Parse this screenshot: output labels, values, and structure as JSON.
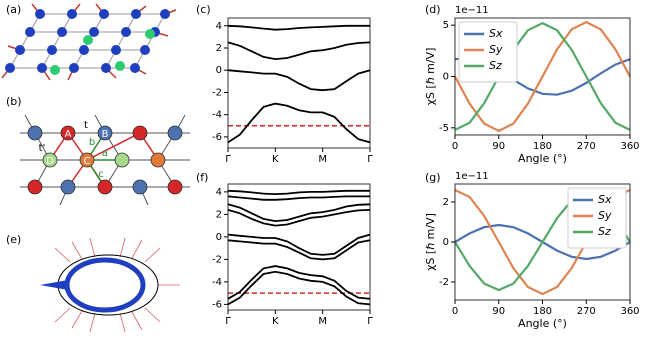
{
  "diagrams": [
    {
      "label": "(a)"
    },
    {
      "label": "(b)",
      "labels": [
        "A",
        "B",
        "C",
        "D",
        "t",
        "t'",
        "a",
        "b",
        "c"
      ]
    },
    {
      "label": "(e)"
    }
  ],
  "chart_data": [
    {
      "type": "line",
      "label": "(c)",
      "x": [
        0,
        0.25,
        0.5,
        0.75,
        1,
        1.25,
        1.5,
        1.75,
        2,
        2.25,
        2.5,
        2.75,
        3
      ],
      "xlim": [
        0,
        3
      ],
      "xticks": [
        {
          "value": 0,
          "label": "Γ"
        },
        {
          "value": 1,
          "label": "K"
        },
        {
          "value": 2,
          "label": "M"
        },
        {
          "value": 3,
          "label": "Γ"
        }
      ],
      "ylim": [
        -7,
        4.7
      ],
      "yticks": [
        -6,
        -4,
        -2,
        0,
        2,
        4
      ],
      "series": [
        {
          "color": "#000000",
          "values": [
            4.0,
            3.95,
            3.85,
            3.75,
            3.65,
            3.7,
            3.8,
            3.85,
            3.9,
            3.95,
            4.0,
            4.0,
            4.0
          ]
        },
        {
          "color": "#000000",
          "values": [
            2.5,
            2.2,
            1.7,
            1.2,
            1.0,
            1.1,
            1.4,
            1.7,
            1.8,
            2.0,
            2.3,
            2.45,
            2.5
          ]
        },
        {
          "color": "#000000",
          "values": [
            0,
            -0.1,
            -0.2,
            -0.3,
            -0.3,
            -0.6,
            -1.2,
            -1.7,
            -1.8,
            -1.7,
            -1.0,
            -0.3,
            0
          ]
        },
        {
          "color": "#000000",
          "values": [
            -6.5,
            -5.8,
            -4.5,
            -3.3,
            -3.0,
            -3.2,
            -3.6,
            -3.8,
            -3.8,
            -4.2,
            -5.3,
            -6.2,
            -6.5
          ]
        }
      ],
      "reference_line": {
        "value": -5,
        "color": "#d62728",
        "dashed": true
      }
    },
    {
      "type": "line",
      "label": "(f)",
      "x": [
        0,
        0.25,
        0.5,
        0.75,
        1,
        1.25,
        1.5,
        1.75,
        2,
        2.25,
        2.5,
        2.75,
        3
      ],
      "xlim": [
        0,
        3
      ],
      "xticks": [
        {
          "value": 0,
          "label": "Γ"
        },
        {
          "value": 1,
          "label": "K"
        },
        {
          "value": 2,
          "label": "M"
        },
        {
          "value": 3,
          "label": "Γ"
        }
      ],
      "ylim": [
        -6.5,
        4.7
      ],
      "yticks": [
        -6,
        -4,
        -2,
        0,
        2,
        4
      ],
      "series": [
        {
          "color": "#000000",
          "values": [
            4.1,
            4.05,
            3.95,
            3.85,
            3.8,
            3.85,
            3.95,
            4.0,
            4.0,
            4.05,
            4.1,
            4.1,
            4.1
          ]
        },
        {
          "color": "#000000",
          "values": [
            3.6,
            3.5,
            3.4,
            3.3,
            3.3,
            3.35,
            3.45,
            3.5,
            3.5,
            3.55,
            3.6,
            3.6,
            3.6
          ]
        },
        {
          "color": "#000000",
          "values": [
            2.9,
            2.6,
            2.1,
            1.6,
            1.4,
            1.5,
            1.8,
            2.1,
            2.2,
            2.4,
            2.7,
            2.85,
            2.9
          ]
        },
        {
          "color": "#000000",
          "values": [
            2.4,
            2.1,
            1.6,
            1.2,
            1.0,
            1.1,
            1.4,
            1.7,
            1.8,
            2.0,
            2.2,
            2.35,
            2.4
          ]
        },
        {
          "color": "#000000",
          "values": [
            0.2,
            0.1,
            0,
            -0.1,
            -0.1,
            -0.4,
            -1.0,
            -1.5,
            -1.6,
            -1.5,
            -0.8,
            -0.1,
            0.2
          ]
        },
        {
          "color": "#000000",
          "values": [
            -0.3,
            -0.4,
            -0.5,
            -0.6,
            -0.6,
            -0.9,
            -1.4,
            -1.9,
            -2.0,
            -1.9,
            -1.2,
            -0.5,
            -0.3
          ]
        },
        {
          "color": "#000000",
          "values": [
            -5.5,
            -4.9,
            -3.8,
            -2.8,
            -2.6,
            -2.8,
            -3.2,
            -3.4,
            -3.5,
            -3.9,
            -4.8,
            -5.4,
            -5.5
          ]
        },
        {
          "color": "#000000",
          "values": [
            -6.0,
            -5.4,
            -4.3,
            -3.3,
            -3.1,
            -3.3,
            -3.7,
            -3.9,
            -4.0,
            -4.4,
            -5.3,
            -5.9,
            -6.0
          ]
        }
      ],
      "reference_line": {
        "value": -5,
        "color": "#d62728",
        "dashed": true
      }
    },
    {
      "type": "line",
      "label": "(d)",
      "multiplier": "1e−11",
      "ylabel": "χS [ℏ m/V]",
      "xlabel": "Angle (°)",
      "x": [
        0,
        30,
        60,
        90,
        120,
        150,
        180,
        210,
        240,
        270,
        300,
        330,
        360
      ],
      "xlim": [
        0,
        360
      ],
      "xticks": [
        0,
        90,
        180,
        270,
        360
      ],
      "ylim": [
        -5.7,
        5.7
      ],
      "yticks": [
        -5,
        0,
        5
      ],
      "legend": "upper left",
      "series": [
        {
          "name": "Sx",
          "color": "#4c72b0",
          "values": [
            1.69,
            1.77,
            1.38,
            0.62,
            -0.31,
            -1.16,
            -1.69,
            -1.77,
            -1.38,
            -0.62,
            0.31,
            1.16,
            1.69
          ]
        },
        {
          "name": "Sy",
          "color": "#dd8452",
          "values": [
            0,
            -2.65,
            -4.59,
            -5.3,
            -4.59,
            -2.65,
            0,
            2.65,
            4.59,
            5.3,
            4.59,
            2.65,
            0
          ]
        },
        {
          "name": "Sz",
          "color": "#55a868",
          "values": [
            -5.2,
            -4.5,
            -2.6,
            0,
            2.6,
            4.5,
            5.2,
            4.5,
            2.6,
            0,
            -2.6,
            -4.5,
            -5.2
          ]
        }
      ]
    },
    {
      "type": "line",
      "label": "(g)",
      "multiplier": "1e−11",
      "ylabel": "χS [ℏ m/V]",
      "xlabel": "Angle (°)",
      "x": [
        0,
        30,
        60,
        90,
        120,
        150,
        180,
        210,
        240,
        270,
        300,
        330,
        360
      ],
      "xlim": [
        0,
        360
      ],
      "xticks": [
        0,
        90,
        180,
        270,
        360
      ],
      "ylim": [
        -2.9,
        2.9
      ],
      "yticks": [
        -2,
        0,
        2
      ],
      "legend": "upper right",
      "series": [
        {
          "name": "Sx",
          "color": "#4c72b0",
          "values": [
            0,
            0.43,
            0.74,
            0.85,
            0.74,
            0.43,
            0,
            -0.43,
            -0.74,
            -0.85,
            -0.74,
            -0.43,
            0
          ]
        },
        {
          "name": "Sy",
          "color": "#dd8452",
          "values": [
            2.6,
            2.25,
            1.3,
            0,
            -1.3,
            -2.25,
            -2.6,
            -2.25,
            -1.3,
            0,
            1.3,
            2.25,
            2.6
          ]
        },
        {
          "name": "Sz",
          "color": "#55a868",
          "values": [
            0,
            -1.2,
            -2.08,
            -2.4,
            -2.08,
            -1.2,
            0,
            1.2,
            2.08,
            2.4,
            2.08,
            1.2,
            0
          ]
        }
      ]
    }
  ]
}
